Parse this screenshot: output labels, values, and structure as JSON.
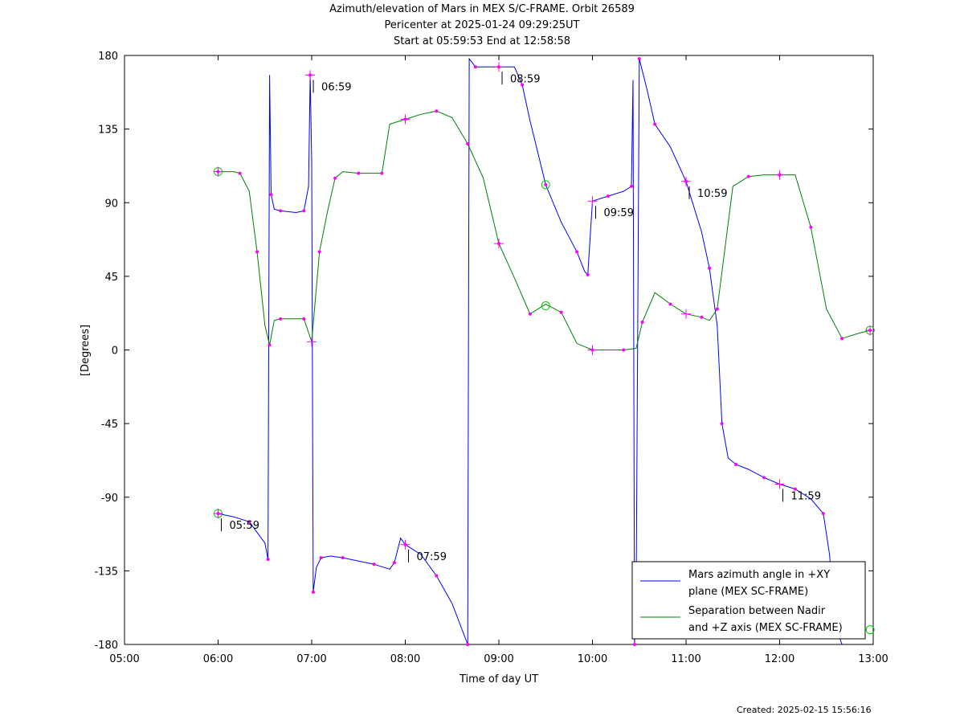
{
  "chart_data": {
    "type": "line",
    "title_lines": [
      "Azimuth/elevation of Mars in MEX S/C-FRAME.  Orbit 26589",
      "Pericenter at 2025-01-24 09:29:25UT",
      "Start at 05:59:53 End at 12:58:58"
    ],
    "xlabel": "Time of day UT",
    "ylabel": "[Degrees]",
    "xlim": [
      "05:00",
      "13:00"
    ],
    "ylim": [
      -180,
      180
    ],
    "x_ticks": [
      "05:00",
      "06:00",
      "07:00",
      "08:00",
      "09:00",
      "10:00",
      "11:00",
      "12:00",
      "13:00"
    ],
    "y_ticks": [
      "180",
      "135",
      "90",
      "45",
      "0",
      "-45",
      "-90",
      "-135",
      "-180"
    ],
    "series": [
      {
        "name": "Mars azimuth angle in +XY plane (MEX SC-FRAME)",
        "color": "#0000ff",
        "points": [
          [
            "06:00",
            -100
          ],
          [
            "06:10",
            -102
          ],
          [
            "06:20",
            -105
          ],
          [
            "06:30",
            -118
          ],
          [
            "06:32",
            -128
          ],
          [
            "06:33",
            168
          ],
          [
            "06:34",
            95
          ],
          [
            "06:36",
            86
          ],
          [
            "06:40",
            85
          ],
          [
            "06:50",
            84
          ],
          [
            "06:55",
            85
          ],
          [
            "06:58",
            100
          ],
          [
            "06:59",
            168
          ],
          [
            "07:00",
            115
          ],
          [
            "07:01",
            -148
          ],
          [
            "07:03",
            -133
          ],
          [
            "07:06",
            -127
          ],
          [
            "07:12",
            -126
          ],
          [
            "07:20",
            -127
          ],
          [
            "07:30",
            -129
          ],
          [
            "07:40",
            -131
          ],
          [
            "07:50",
            -134
          ],
          [
            "07:53",
            -130
          ],
          [
            "07:57",
            -115
          ],
          [
            "08:00",
            -119
          ],
          [
            "08:10",
            -125
          ],
          [
            "08:20",
            -138
          ],
          [
            "08:30",
            -155
          ],
          [
            "08:40",
            -180
          ],
          [
            "08:41",
            178
          ],
          [
            "08:45",
            173
          ],
          [
            "08:50",
            173
          ],
          [
            "09:00",
            173
          ],
          [
            "09:10",
            173
          ],
          [
            "09:15",
            162
          ],
          [
            "09:20",
            140
          ],
          [
            "09:30",
            101
          ],
          [
            "09:40",
            78
          ],
          [
            "09:50",
            60
          ],
          [
            "09:55",
            48
          ],
          [
            "09:57",
            46
          ],
          [
            "10:00",
            91
          ],
          [
            "10:10",
            94
          ],
          [
            "10:20",
            97
          ],
          [
            "10:25",
            100
          ],
          [
            "10:26",
            165
          ],
          [
            "10:27",
            -180
          ],
          [
            "10:28",
            -150
          ],
          [
            "10:30",
            178
          ],
          [
            "10:35",
            159
          ],
          [
            "10:40",
            138
          ],
          [
            "10:50",
            124
          ],
          [
            "11:00",
            103
          ],
          [
            "11:10",
            72
          ],
          [
            "11:15",
            50
          ],
          [
            "11:20",
            15
          ],
          [
            "11:23",
            -45
          ],
          [
            "11:27",
            -66
          ],
          [
            "11:32",
            -70
          ],
          [
            "11:40",
            -73
          ],
          [
            "11:50",
            -78
          ],
          [
            "12:00",
            -82
          ],
          [
            "12:10",
            -85
          ],
          [
            "12:20",
            -91
          ],
          [
            "12:28",
            -100
          ],
          [
            "12:32",
            -125
          ],
          [
            "12:36",
            -170
          ],
          [
            "12:40",
            -180
          ]
        ]
      },
      {
        "name": "Separation between Nadir and +Z axis (MEX SC-FRAME)",
        "color": "#008000",
        "points": [
          [
            "06:00",
            109
          ],
          [
            "06:10",
            109
          ],
          [
            "06:14",
            108
          ],
          [
            "06:20",
            97
          ],
          [
            "06:25",
            60
          ],
          [
            "06:30",
            15
          ],
          [
            "06:33",
            3
          ],
          [
            "06:36",
            18
          ],
          [
            "06:40",
            19
          ],
          [
            "06:50",
            19
          ],
          [
            "06:55",
            19
          ],
          [
            "07:00",
            5
          ],
          [
            "07:05",
            60
          ],
          [
            "07:10",
            84
          ],
          [
            "07:15",
            105
          ],
          [
            "07:20",
            109
          ],
          [
            "07:30",
            108
          ],
          [
            "07:40",
            108
          ],
          [
            "07:45",
            108
          ],
          [
            "07:50",
            138
          ],
          [
            "08:00",
            141
          ],
          [
            "08:10",
            144
          ],
          [
            "08:20",
            146
          ],
          [
            "08:30",
            142
          ],
          [
            "08:40",
            126
          ],
          [
            "08:50",
            105
          ],
          [
            "09:00",
            65
          ],
          [
            "09:10",
            44
          ],
          [
            "09:20",
            22
          ],
          [
            "09:30",
            28
          ],
          [
            "09:40",
            23
          ],
          [
            "09:50",
            4
          ],
          [
            "10:00",
            0
          ],
          [
            "10:10",
            0
          ],
          [
            "10:20",
            0
          ],
          [
            "10:28",
            1
          ],
          [
            "10:32",
            17
          ],
          [
            "10:40",
            35
          ],
          [
            "10:50",
            28
          ],
          [
            "11:00",
            22
          ],
          [
            "11:10",
            20
          ],
          [
            "11:15",
            18
          ],
          [
            "11:20",
            25
          ],
          [
            "11:30",
            100
          ],
          [
            "11:40",
            106
          ],
          [
            "11:50",
            107
          ],
          [
            "12:00",
            107
          ],
          [
            "12:10",
            107
          ],
          [
            "12:20",
            75
          ],
          [
            "12:30",
            25
          ],
          [
            "12:40",
            7
          ],
          [
            "12:50",
            10
          ],
          [
            "12:58",
            12
          ]
        ]
      }
    ],
    "circle_markers": [
      [
        "06:00",
        109
      ],
      [
        "06:00",
        -100
      ],
      [
        "09:30",
        101
      ],
      [
        "09:30",
        27
      ],
      [
        "12:58",
        12
      ],
      [
        "12:58",
        -171
      ]
    ],
    "plus_markers": [
      [
        "06:00",
        109
      ],
      [
        "06:00",
        -100
      ],
      [
        "06:59",
        168
      ],
      [
        "07:00",
        5
      ],
      [
        "08:00",
        141
      ],
      [
        "08:00",
        -119
      ],
      [
        "09:00",
        173
      ],
      [
        "09:00",
        65
      ],
      [
        "10:00",
        91
      ],
      [
        "10:00",
        0
      ],
      [
        "11:00",
        103
      ],
      [
        "11:00",
        22
      ],
      [
        "12:00",
        107
      ],
      [
        "12:00",
        -82
      ],
      [
        "12:58",
        12
      ]
    ],
    "annotations": [
      {
        "text": "05:59",
        "x": "06:00",
        "y": -100
      },
      {
        "text": "06:59",
        "x": "06:59",
        "y": 168
      },
      {
        "text": "07:59",
        "x": "08:00",
        "y": -119
      },
      {
        "text": "08:59",
        "x": "09:00",
        "y": 173
      },
      {
        "text": "09:59",
        "x": "10:00",
        "y": 91
      },
      {
        "text": "10:59",
        "x": "11:00",
        "y": 103
      },
      {
        "text": "11:59",
        "x": "12:00",
        "y": -82
      }
    ],
    "legend": {
      "placement": "bottom-right",
      "entries": [
        {
          "lines": [
            "Mars azimuth angle in +XY",
            "plane (MEX SC-FRAME)"
          ],
          "color": "#0000ff"
        },
        {
          "lines": [
            "Separation between Nadir",
            "and +Z axis (MEX SC-FRAME)"
          ],
          "color": "#008000"
        }
      ]
    },
    "grid": false,
    "marker_color": "#ff00ff",
    "circle_color": "#00cc00"
  },
  "footer": {
    "created": "Created: 2025-02-15 15:56:16"
  }
}
